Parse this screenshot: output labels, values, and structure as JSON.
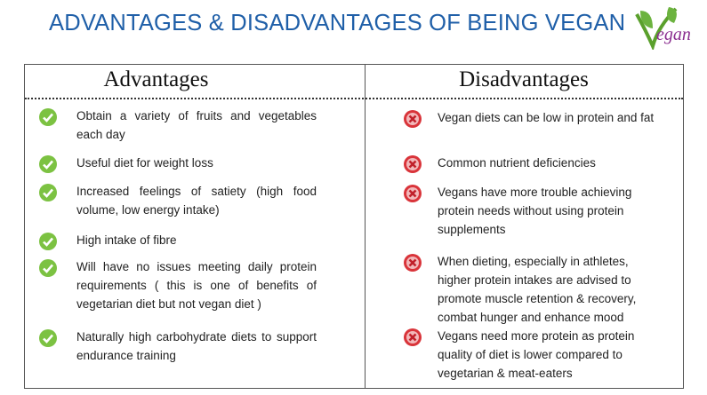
{
  "header": {
    "title": "ADVANTAGES & DISADVANTAGES OF BEING VEGAN",
    "logo": "egan"
  },
  "advantages": {
    "heading": "Advantages",
    "items": [
      "Obtain a variety of fruits and vegetables each day",
      "Useful diet for weight loss",
      "Increased feelings of satiety (high food volume, low energy intake)",
      "High intake of fibre",
      "Will have no issues meeting daily protein requirements ( this is one of benefits of vegetarian diet but not vegan diet )",
      "Naturally high carbohydrate diets to support endurance training"
    ]
  },
  "disadvantages": {
    "heading": "Disadvantages",
    "items": [
      "Vegan diets can be low in protein and fat",
      "Common nutrient deficiencies",
      "Vegans have more trouble achieving protein needs without using protein supplements",
      "When dieting, especially in athletes, higher protein intakes are advised to promote muscle retention & recovery, combat hunger and enhance mood",
      "Vegans need more protein as protein quality of diet is lower compared to vegetarian & meat-eaters"
    ]
  }
}
